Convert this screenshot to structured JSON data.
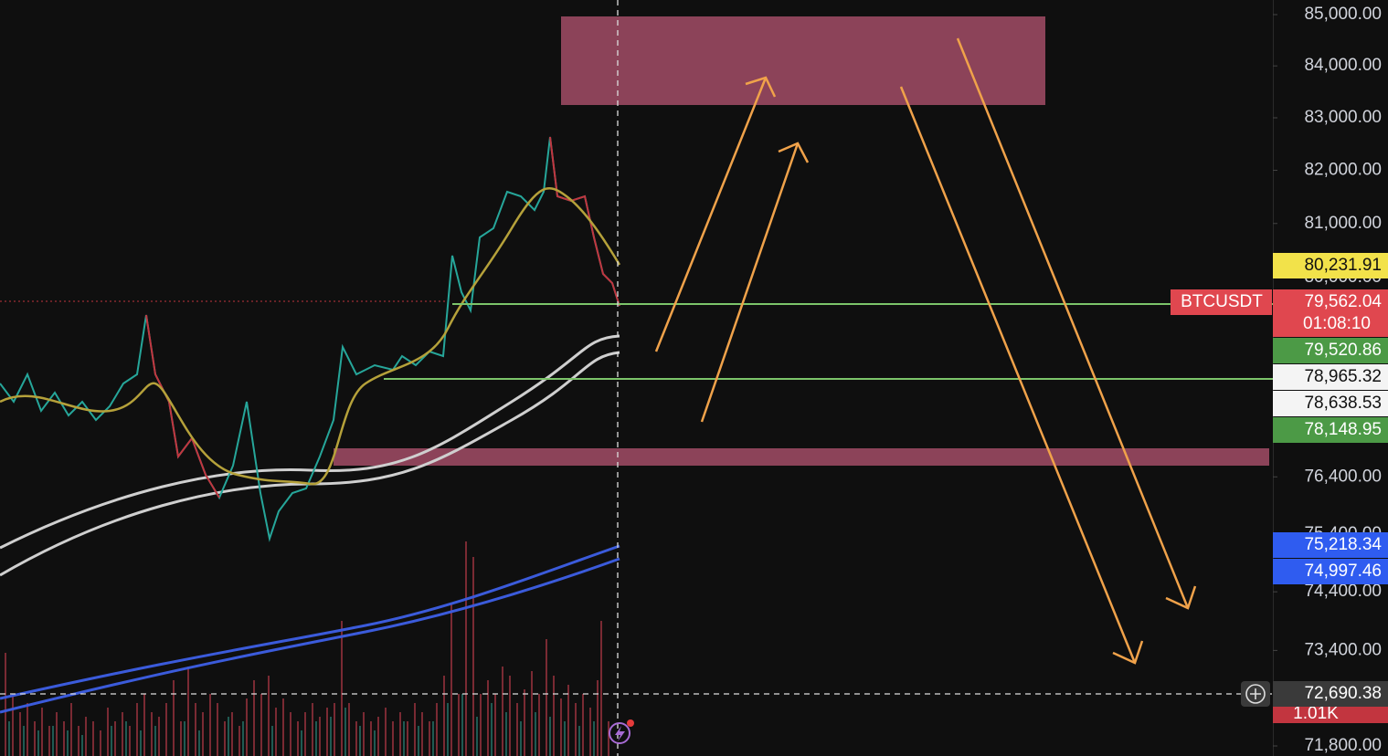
{
  "price_axis": {
    "log_scale": true,
    "ticks": [
      {
        "value": 85000,
        "label": "85,000.00"
      },
      {
        "value": 84000,
        "label": "84,000.00"
      },
      {
        "value": 83000,
        "label": "83,000.00"
      },
      {
        "value": 82000,
        "label": "82,000.00"
      },
      {
        "value": 81000,
        "label": "81,000.00"
      },
      {
        "value": 80000,
        "label": "80,000.00"
      },
      {
        "value": 76400,
        "label": "76,400.00"
      },
      {
        "value": 75400,
        "label": "75,400.00"
      },
      {
        "value": 74400,
        "label": "74,400.00"
      },
      {
        "value": 73400,
        "label": "73,400.00"
      },
      {
        "value": 71800,
        "label": "71,800.00"
      }
    ]
  },
  "price_tags": {
    "ma_yellow": "80,231.91",
    "last_price": "79,562.04",
    "countdown": "01:08:10",
    "ma_green": "79,520.86",
    "ma_white_1": "78,965.32",
    "ma_white_2": "78,638.53",
    "ma_green_2": "78,148.95",
    "ma_blue_1": "75,218.34",
    "ma_blue_2": "74,997.46"
  },
  "symbol": "BTCUSDT",
  "volume_label": "1.01K",
  "crosshair_price": "72,690.38"
}
